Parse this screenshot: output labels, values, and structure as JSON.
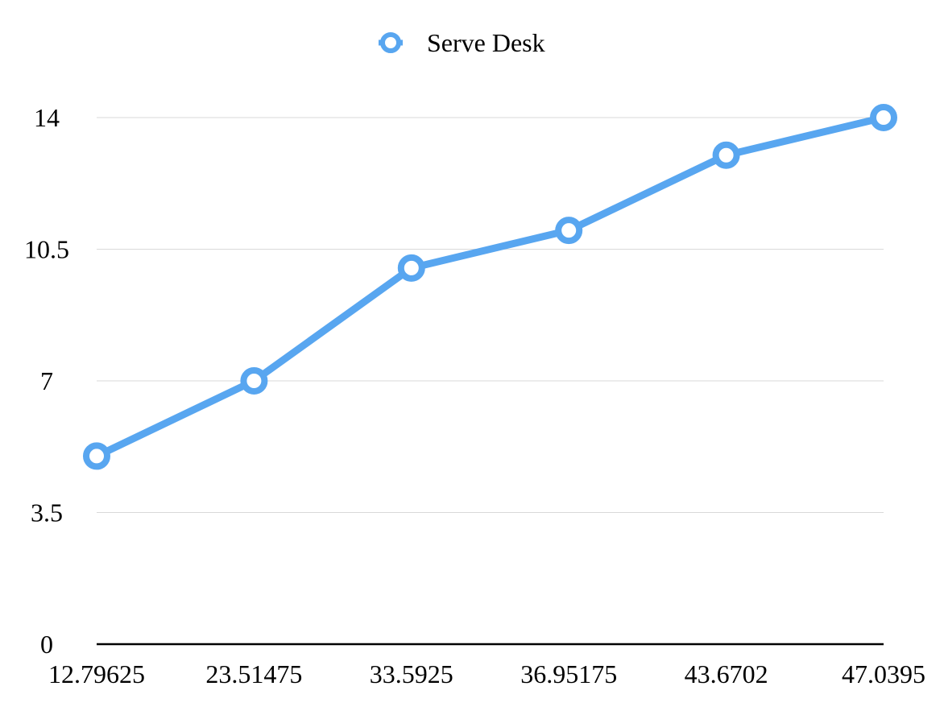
{
  "chart_data": {
    "type": "line",
    "title": "",
    "xlabel": "",
    "ylabel": "",
    "categories": [
      "12.79625",
      "23.51475",
      "33.5925",
      "36.95175",
      "43.6702",
      "47.0395"
    ],
    "series": [
      {
        "name": "Serve Desk",
        "color": "#58a6f0",
        "values": [
          5.0,
          7.0,
          10.0,
          11.0,
          13.0,
          14.0
        ]
      }
    ],
    "ylim": [
      0,
      14
    ],
    "yticks": [
      "0",
      "3.5",
      "7",
      "10.5",
      "14"
    ],
    "ytick_values": [
      0,
      3.5,
      7,
      10.5,
      14
    ],
    "grid": true,
    "legend_position": "top-center"
  }
}
